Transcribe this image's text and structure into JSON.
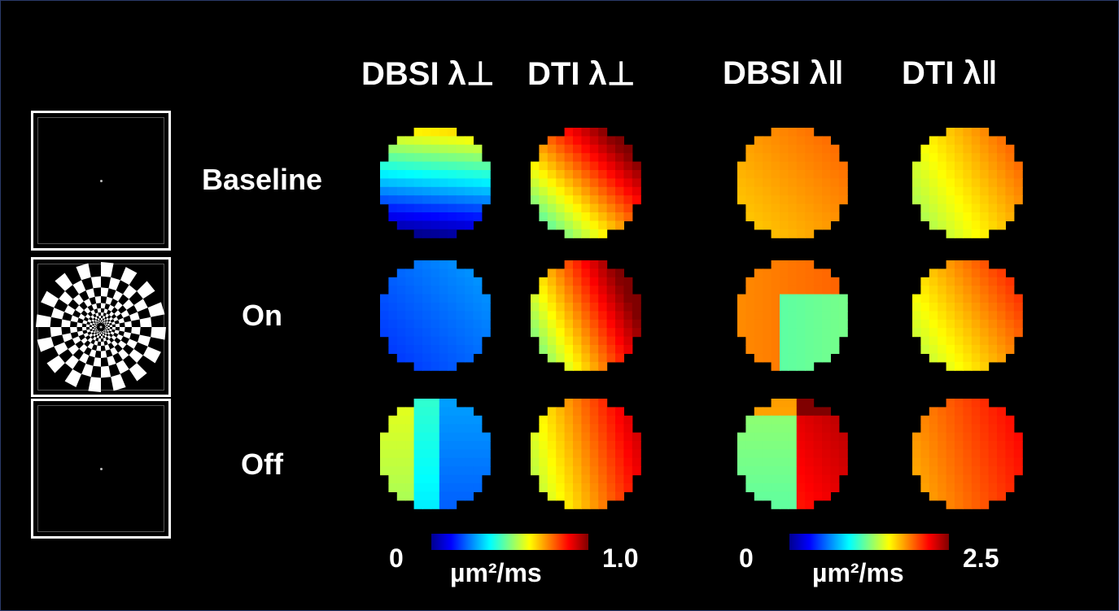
{
  "columns": [
    {
      "label": "DBSI λ⊥"
    },
    {
      "label": "DTI λ⊥"
    },
    {
      "label": "DBSI λ‖"
    },
    {
      "label": "DTI λ‖"
    }
  ],
  "rows": [
    {
      "label": "Baseline",
      "stimulus": "fixation-dot"
    },
    {
      "label": "On",
      "stimulus": "radial-checkerboard"
    },
    {
      "label": "Off",
      "stimulus": "fixation-dot"
    }
  ],
  "colorbars": {
    "perpendicular": {
      "min_label": "0",
      "max_label": "1.0",
      "unit": "µm²/ms",
      "range": [
        0,
        1.0
      ]
    },
    "parallel": {
      "min_label": "0",
      "max_label": "2.5",
      "unit": "µm²/ms",
      "range": [
        0,
        2.5
      ]
    }
  },
  "colormap": "jet",
  "colors": {
    "background": "#000000",
    "frame": "#ffffff",
    "text": "#ffffff"
  }
}
